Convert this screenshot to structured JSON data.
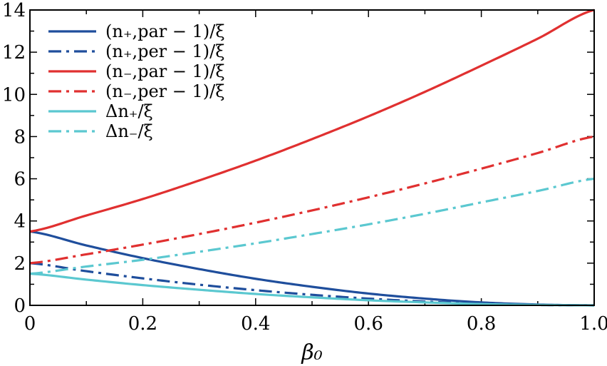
{
  "chart_data": {
    "type": "line",
    "title": "",
    "xlabel": "β₀",
    "ylabel": "",
    "xlim": [
      0,
      1.0
    ],
    "ylim": [
      0,
      14
    ],
    "xticks": [
      "0",
      "0.2",
      "0.4",
      "0.6",
      "0.8",
      "1.0"
    ],
    "yticks": [
      "0",
      "2",
      "4",
      "6",
      "8",
      "10",
      "12",
      "14"
    ],
    "legend_position": "top-left",
    "x": [
      0,
      0.1,
      0.2,
      0.3,
      0.4,
      0.5,
      0.6,
      0.7,
      0.8,
      0.9,
      1.0
    ],
    "series": [
      {
        "name": "(n₊,par − 1)/ξ",
        "color": "#1f4e9c",
        "dash": "solid",
        "values": [
          3.5,
          2.84,
          2.24,
          1.72,
          1.26,
          0.88,
          0.56,
          0.32,
          0.14,
          0.04,
          0.0
        ]
      },
      {
        "name": "(n₊,per − 1)/ξ",
        "color": "#1f4e9c",
        "dash": "dashdot",
        "values": [
          2.0,
          1.62,
          1.28,
          0.98,
          0.72,
          0.5,
          0.32,
          0.18,
          0.08,
          0.02,
          0.0
        ]
      },
      {
        "name": "(n₋,par − 1)/ξ",
        "color": "#e03030",
        "dash": "solid",
        "values": [
          3.5,
          4.26,
          5.04,
          5.92,
          6.86,
          7.88,
          8.96,
          10.12,
          11.36,
          12.64,
          14.0
        ]
      },
      {
        "name": "(n₋,per − 1)/ξ",
        "color": "#e03030",
        "dash": "dashdot",
        "values": [
          2.0,
          2.42,
          2.88,
          3.38,
          3.92,
          4.5,
          5.12,
          5.78,
          6.48,
          7.22,
          8.0
        ]
      },
      {
        "name": "Δn₊/ξ",
        "color": "#5bc8d0",
        "dash": "solid",
        "values": [
          1.5,
          1.22,
          0.96,
          0.74,
          0.54,
          0.38,
          0.24,
          0.14,
          0.06,
          0.02,
          0.0
        ]
      },
      {
        "name": "Δn₋/ξ",
        "color": "#5bc8d0",
        "dash": "dashdot",
        "values": [
          1.5,
          1.84,
          2.16,
          2.54,
          2.94,
          3.38,
          3.84,
          4.34,
          4.88,
          5.42,
          6.0
        ]
      }
    ]
  }
}
